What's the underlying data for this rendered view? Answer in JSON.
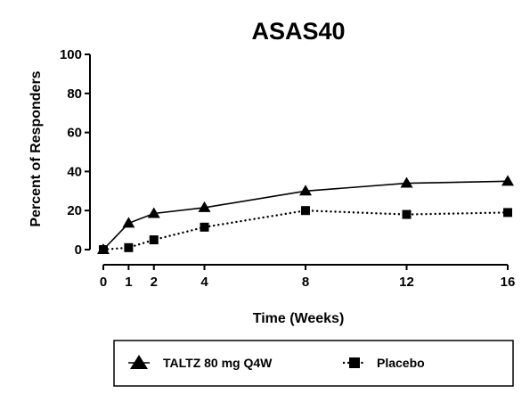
{
  "chart_data": {
    "type": "line",
    "title": "ASAS40",
    "xlabel": "Time (Weeks)",
    "ylabel": "Percent of Responders",
    "x": [
      0,
      1,
      2,
      4,
      8,
      12,
      16
    ],
    "xlim": [
      0,
      16
    ],
    "ylim": [
      0,
      100
    ],
    "xticks": [
      0,
      1,
      2,
      4,
      8,
      12,
      16
    ],
    "yticks": [
      0,
      20,
      40,
      60,
      80,
      100
    ],
    "grid": false,
    "legend_position": "bottom",
    "series": [
      {
        "name": "TALTZ 80 mg Q4W",
        "marker": "triangle",
        "line_style": "solid",
        "color": "#000000",
        "x": [
          0,
          1,
          2,
          4,
          8,
          12,
          16
        ],
        "values": [
          0,
          13.5,
          18.5,
          21.5,
          30,
          34,
          35
        ]
      },
      {
        "name": "Placebo",
        "marker": "square",
        "line_style": "dotted",
        "color": "#000000",
        "x": [
          0,
          1,
          2,
          4,
          8,
          12,
          16
        ],
        "values": [
          0,
          1,
          5,
          11.5,
          20,
          18,
          19
        ]
      }
    ]
  }
}
